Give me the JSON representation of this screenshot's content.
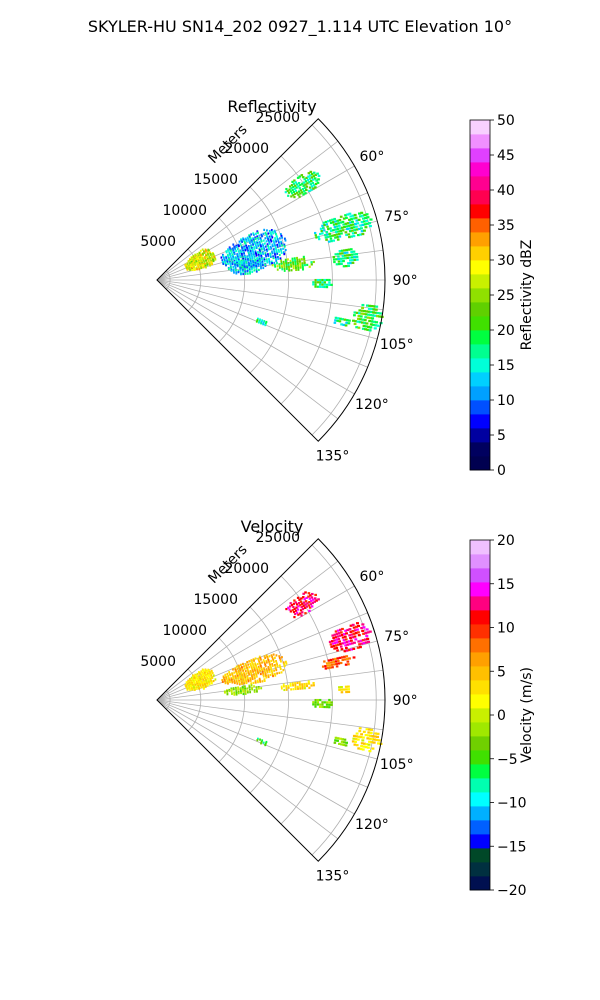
{
  "figure_title": "SKYLER-HU  SN14_202  0927_1.114 UTC Elevation 10°",
  "chart_data": [
    {
      "type": "heatmap",
      "projection": "polar-sector",
      "title": "Reflectivity",
      "radial_axis_label": "Meters",
      "radial_ticks": [
        5000,
        10000,
        15000,
        20000,
        25000
      ],
      "radial_tick_labels": [
        "5000",
        "10000",
        "15000",
        "20000",
        "25000"
      ],
      "angular_range_deg": [
        45,
        135
      ],
      "angular_ticks": [
        60,
        75,
        90,
        105,
        120,
        135
      ],
      "angular_tick_labels": [
        "60°",
        "75°",
        "90°",
        "105°",
        "120°",
        "135°"
      ],
      "grid": true,
      "colorbar": {
        "label": "Reflectivity dBZ",
        "range": [
          0,
          50
        ],
        "ticks": [
          0,
          5,
          10,
          15,
          20,
          25,
          30,
          35,
          40,
          45,
          50
        ],
        "tick_labels": [
          "0",
          "5",
          "10",
          "15",
          "20",
          "25",
          "30",
          "35",
          "40",
          "45",
          "50"
        ],
        "colors": [
          "#000050",
          "#00005f",
          "#0000a0",
          "#0000ff",
          "#0050ff",
          "#00a0ff",
          "#00d0ff",
          "#00ffd8",
          "#00ff90",
          "#00ff40",
          "#40e000",
          "#60d000",
          "#90e000",
          "#c8f000",
          "#ffff00",
          "#ffd000",
          "#ffa000",
          "#ff6000",
          "#ff0000",
          "#ff0050",
          "#ff0090",
          "#ff00d0",
          "#e040ff",
          "#f090ff",
          "#f8d0ff"
        ]
      },
      "echo_regions": [
        {
          "r": [
            3400,
            7300
          ],
          "az": [
            54,
            76
          ],
          "value": 28
        },
        {
          "r": [
            7500,
            15500
          ],
          "az": [
            63,
            83
          ],
          "value": 12
        },
        {
          "r": [
            8000,
            12500
          ],
          "az": [
            76,
            86
          ],
          "value": 13
        },
        {
          "r": [
            17500,
            22000
          ],
          "az": [
            53,
            60
          ],
          "value": 19
        },
        {
          "r": [
            18500,
            25500
          ],
          "az": [
            70,
            78
          ],
          "value": 18
        },
        {
          "r": [
            13000,
            18000
          ],
          "az": [
            80,
            86
          ],
          "value": 22
        },
        {
          "r": [
            20000,
            23000
          ],
          "az": [
            80,
            86
          ],
          "value": 18
        },
        {
          "r": [
            17500,
            20000
          ],
          "az": [
            89,
            93
          ],
          "value": 19
        },
        {
          "r": [
            22500,
            26000
          ],
          "az": [
            96,
            104
          ],
          "value": 20
        },
        {
          "r": [
            20500,
            22500
          ],
          "az": [
            101,
            104
          ],
          "value": 18
        },
        {
          "r": [
            12000,
            13500
          ],
          "az": [
            110,
            113
          ],
          "value": 17
        }
      ]
    },
    {
      "type": "heatmap",
      "projection": "polar-sector",
      "title": "Velocity",
      "radial_axis_label": "Meters",
      "radial_ticks": [
        5000,
        10000,
        15000,
        20000,
        25000
      ],
      "radial_tick_labels": [
        "5000",
        "10000",
        "15000",
        "20000",
        "25000"
      ],
      "angular_range_deg": [
        45,
        135
      ],
      "angular_ticks": [
        60,
        75,
        90,
        105,
        120,
        135
      ],
      "angular_tick_labels": [
        "60°",
        "75°",
        "90°",
        "105°",
        "120°",
        "135°"
      ],
      "grid": true,
      "colorbar": {
        "label": "Velocity (m/s)",
        "range": [
          -20,
          20
        ],
        "ticks": [
          -20,
          -15,
          -10,
          -5,
          0,
          5,
          10,
          15,
          20
        ],
        "tick_labels": [
          "−20",
          "−15",
          "−10",
          "−5",
          "0",
          "5",
          "10",
          "15",
          "20"
        ],
        "colors": [
          "#001050",
          "#003040",
          "#004828",
          "#0000ff",
          "#0060ff",
          "#00b0ff",
          "#00ffff",
          "#00ffb0",
          "#00ff40",
          "#40e000",
          "#70d000",
          "#a0e800",
          "#c8f000",
          "#ffff00",
          "#ffe000",
          "#ffc000",
          "#ffa000",
          "#ff7000",
          "#ff3000",
          "#ff0000",
          "#ff0080",
          "#ff00ff",
          "#d050ff",
          "#e090ff",
          "#f0c0ff"
        ]
      },
      "echo_regions": [
        {
          "r": [
            3400,
            7300
          ],
          "az": [
            54,
            76
          ],
          "value": 3
        },
        {
          "r": [
            7500,
            15500
          ],
          "az": [
            66,
            80
          ],
          "value": 5
        },
        {
          "r": [
            7500,
            12000
          ],
          "az": [
            80,
            86
          ],
          "value": -2
        },
        {
          "r": [
            17500,
            22000
          ],
          "az": [
            53,
            60
          ],
          "value": 12
        },
        {
          "r": [
            20500,
            25500
          ],
          "az": [
            68,
            76
          ],
          "value": 12
        },
        {
          "r": [
            19000,
            23000
          ],
          "az": [
            76,
            80
          ],
          "value": 9
        },
        {
          "r": [
            14000,
            18000
          ],
          "az": [
            82,
            86
          ],
          "value": 3
        },
        {
          "r": [
            20500,
            22000
          ],
          "az": [
            85,
            88
          ],
          "value": 3
        },
        {
          "r": [
            17500,
            20000
          ],
          "az": [
            89,
            93
          ],
          "value": -3
        },
        {
          "r": [
            22500,
            26000
          ],
          "az": [
            97,
            104
          ],
          "value": 3
        },
        {
          "r": [
            20500,
            22500
          ],
          "az": [
            101,
            104
          ],
          "value": -3
        },
        {
          "r": [
            12000,
            13500
          ],
          "az": [
            110,
            113
          ],
          "value": -5
        }
      ]
    }
  ]
}
